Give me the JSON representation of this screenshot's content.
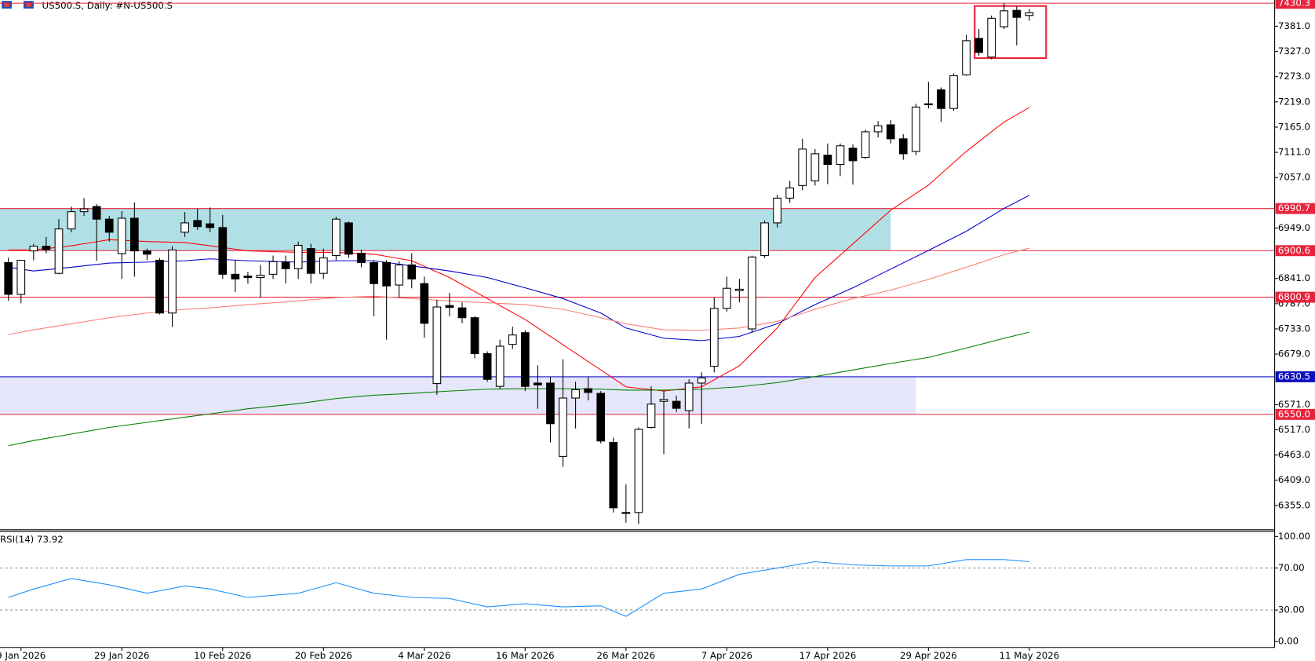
{
  "header": {
    "title": "US500.S, Daily:  #N-US500.S"
  },
  "chart_data": {
    "type": "candlestick",
    "categories": [
      null,
      "9 Jan 2026",
      null,
      null,
      null,
      null,
      null,
      null,
      null,
      "29 Jan 2026",
      null,
      null,
      null,
      null,
      null,
      null,
      null,
      "10 Feb 2026",
      null,
      null,
      null,
      null,
      null,
      null,
      null,
      "20 Feb 2026",
      null,
      null,
      null,
      null,
      null,
      null,
      null,
      "4 Mar 2026",
      null,
      null,
      null,
      null,
      null,
      null,
      null,
      "16 Mar 2026",
      null,
      null,
      null,
      null,
      null,
      null,
      null,
      "26 Mar 2026",
      null,
      null,
      null,
      null,
      null,
      null,
      null,
      "7 Apr 2026",
      null,
      null,
      null,
      null,
      null,
      null,
      null,
      "17 Apr 2026",
      null,
      null,
      null,
      null,
      null,
      null,
      null,
      "29 Apr 2026",
      null,
      null,
      null,
      null,
      null,
      null,
      null,
      "11 May 2026"
    ],
    "open": [
      6875,
      6807,
      6900,
      6910,
      6852,
      6947,
      6984,
      6995,
      6968,
      6894,
      6970,
      6900,
      6880,
      6767,
      6940,
      6965,
      6958,
      6950,
      6850,
      6846,
      6843,
      6850,
      6876,
      6862,
      6905,
      6852,
      6890,
      6960,
      6895,
      6875,
      6875,
      6827,
      6870,
      6830,
      6616,
      6783,
      6778,
      6757,
      6680,
      6610,
      6700,
      6725,
      6617,
      6617,
      6460,
      6585,
      6605,
      6595,
      6490,
      6340,
      6340,
      6522,
      6578,
      6578,
      6558,
      6617,
      6653,
      6777,
      6815,
      6733,
      6890,
      6960,
      7013,
      7040,
      7050,
      7105,
      7085,
      7120,
      7100,
      7155,
      7170,
      7140,
      7113,
      7215,
      7245,
      7205,
      7277,
      7355,
      7315,
      7380,
      7415,
      7404
    ],
    "high": [
      6886,
      6880,
      6915,
      6930,
      6968,
      6995,
      7013,
      7000,
      6975,
      6985,
      7004,
      6905,
      6885,
      6910,
      6983,
      6990,
      6993,
      6977,
      6880,
      6855,
      6870,
      6890,
      6890,
      6920,
      6915,
      6905,
      6973,
      6963,
      6903,
      6880,
      6880,
      6878,
      6895,
      6845,
      6795,
      6810,
      6790,
      6760,
      6685,
      6710,
      6738,
      6730,
      6655,
      6630,
      6668,
      6620,
      6630,
      6600,
      6500,
      6400,
      6522,
      6610,
      6600,
      6590,
      6625,
      6640,
      6800,
      6845,
      6840,
      6890,
      6965,
      7020,
      7050,
      7140,
      7118,
      7130,
      7130,
      7128,
      7160,
      7178,
      7180,
      7150,
      7215,
      7262,
      7250,
      7280,
      7363,
      7375,
      7404,
      7430,
      7423,
      7418
    ],
    "low": [
      6793,
      6788,
      6880,
      6895,
      6850,
      6940,
      6975,
      6879,
      6920,
      6840,
      6845,
      6880,
      6764,
      6737,
      6930,
      6945,
      6940,
      6840,
      6812,
      6830,
      6800,
      6840,
      6830,
      6840,
      6830,
      6840,
      6880,
      6885,
      6865,
      6760,
      6710,
      6800,
      6820,
      6714,
      6592,
      6760,
      6745,
      6670,
      6620,
      6605,
      6690,
      6600,
      6562,
      6490,
      6438,
      6520,
      6580,
      6488,
      6340,
      6318,
      6315,
      6520,
      6465,
      6555,
      6520,
      6530,
      6640,
      6770,
      6790,
      6725,
      6885,
      6950,
      7003,
      7030,
      7040,
      7043,
      7060,
      7042,
      7097,
      7143,
      7130,
      7095,
      7105,
      7205,
      7176,
      7200,
      7275,
      7318,
      7310,
      7375,
      7340,
      7393
    ],
    "close": [
      6807,
      6880,
      6910,
      6903,
      6947,
      6984,
      6990,
      6968,
      6940,
      6970,
      6900,
      6893,
      6767,
      6902,
      6960,
      6952,
      6950,
      6850,
      6840,
      6843,
      6848,
      6877,
      6862,
      6912,
      6852,
      6885,
      6968,
      6893,
      6875,
      6830,
      6825,
      6870,
      6840,
      6745,
      6780,
      6779,
      6757,
      6680,
      6625,
      6696,
      6720,
      6610,
      6613,
      6530,
      6585,
      6603,
      6597,
      6493,
      6350,
      6338,
      6518,
      6572,
      6582,
      6563,
      6617,
      6628,
      6777,
      6820,
      6818,
      6887,
      6960,
      7013,
      7035,
      7118,
      7108,
      7085,
      7125,
      7093,
      7155,
      7168,
      7140,
      7108,
      7208,
      7213,
      7205,
      7275,
      7350,
      7325,
      7398,
      7414,
      7400,
      7410
    ],
    "ylim": [
      6303,
      7437
    ],
    "yticks": [
      {
        "value": 7381,
        "label": "7381.0"
      },
      {
        "value": 7327,
        "label": "7327.0"
      },
      {
        "value": 7273,
        "label": "7273.0"
      },
      {
        "value": 7219,
        "label": "7219.0"
      },
      {
        "value": 7165,
        "label": "7165.0"
      },
      {
        "value": 7111,
        "label": "7111.0"
      },
      {
        "value": 7057,
        "label": "7057.0"
      },
      {
        "value": 6949,
        "label": "6949.0"
      },
      {
        "value": 6841,
        "label": "6841.0"
      },
      {
        "value": 6787,
        "label": "6787.0"
      },
      {
        "value": 6733,
        "label": "6733.0"
      },
      {
        "value": 6679,
        "label": "6679.0"
      },
      {
        "value": 6571,
        "label": "6571.0"
      },
      {
        "value": 6517,
        "label": "6517.0"
      },
      {
        "value": 6463,
        "label": "6463.0"
      },
      {
        "value": 6409,
        "label": "6409.0"
      },
      {
        "value": 6355,
        "label": "6355.0"
      }
    ],
    "levels": [
      {
        "value": 7430.3,
        "label": "7430.3",
        "color": "#e8243c"
      },
      {
        "value": 6990.7,
        "label": "6990.7",
        "color": "#e8243c"
      },
      {
        "value": 6900.6,
        "label": "6900.6",
        "color": "#e8243c"
      },
      {
        "value": 6800.9,
        "label": "6800.9",
        "color": "#e8243c"
      },
      {
        "value": 6630.5,
        "label": "6630.5",
        "color": "#1010c0"
      },
      {
        "value": 6550.0,
        "label": "6550.0",
        "color": "#e8243c"
      }
    ],
    "zones": [
      {
        "ylim": [
          6900.6,
          6990.7
        ],
        "end": 70,
        "color": "#b0e0e6"
      },
      {
        "ylim": [
          6550.0,
          6630.5
        ],
        "end": 72,
        "color": "#e6e6fa"
      }
    ],
    "line_x": [
      0,
      2,
      5,
      8,
      11,
      14,
      16,
      19,
      23,
      26,
      29,
      32,
      35,
      38,
      41,
      44,
      47,
      49,
      52,
      55,
      58,
      61,
      64,
      67,
      70,
      73,
      76,
      79,
      81
    ],
    "lines": [
      {
        "color": "#ff0000",
        "values": [
          6902,
          6902,
          6911,
          6924,
          6920,
          6918,
          6911,
          6900,
          6897,
          6897,
          6893,
          6879,
          6843,
          6798,
          6753,
          6699,
          6645,
          6609,
          6600,
          6609,
          6654,
          6735,
          6843,
          6915,
          6987,
          7041,
          7113,
          7176,
          7207
        ]
      },
      {
        "color": "#0000c8",
        "values": [
          6865,
          6857,
          6865,
          6874,
          6876,
          6879,
          6883,
          6879,
          6876,
          6879,
          6879,
          6868,
          6857,
          6843,
          6821,
          6798,
          6767,
          6735,
          6713,
          6708,
          6717,
          6744,
          6785,
          6821,
          6861,
          6901,
          6942,
          6991,
          7019
        ]
      },
      {
        "color": "#fa8072",
        "values": [
          6721,
          6731,
          6744,
          6757,
          6767,
          6775,
          6778,
          6785,
          6793,
          6800,
          6803,
          6798,
          6793,
          6789,
          6785,
          6775,
          6757,
          6744,
          6731,
          6730,
          6735,
          6749,
          6775,
          6798,
          6816,
          6839,
          6865,
          6892,
          6906
        ]
      },
      {
        "color": "#008000",
        "values": [
          6483,
          6494,
          6508,
          6522,
          6533,
          6544,
          6551,
          6562,
          6573,
          6584,
          6591,
          6595,
          6600,
          6604,
          6605,
          6605,
          6604,
          6602,
          6602,
          6604,
          6609,
          6618,
          6631,
          6645,
          6659,
          6672,
          6692,
          6713,
          6726
        ]
      }
    ]
  },
  "rsi": {
    "title": "RSI(14) 73.92",
    "color": "#1e90ff",
    "ylim": [
      0,
      100
    ],
    "yticks": [
      {
        "value": 100,
        "label": "100.00"
      },
      {
        "value": 70,
        "label": "70.00"
      },
      {
        "value": 30,
        "label": "30.00"
      },
      {
        "value": 0,
        "label": "0.00"
      }
    ],
    "dashed": [
      70,
      30
    ],
    "values": [
      42,
      50,
      60,
      54,
      46,
      53,
      50,
      42,
      46,
      56,
      46,
      42,
      41,
      33,
      36,
      33,
      34,
      24,
      46,
      50,
      64,
      70,
      76,
      73,
      72,
      72,
      78,
      78,
      76
    ]
  }
}
